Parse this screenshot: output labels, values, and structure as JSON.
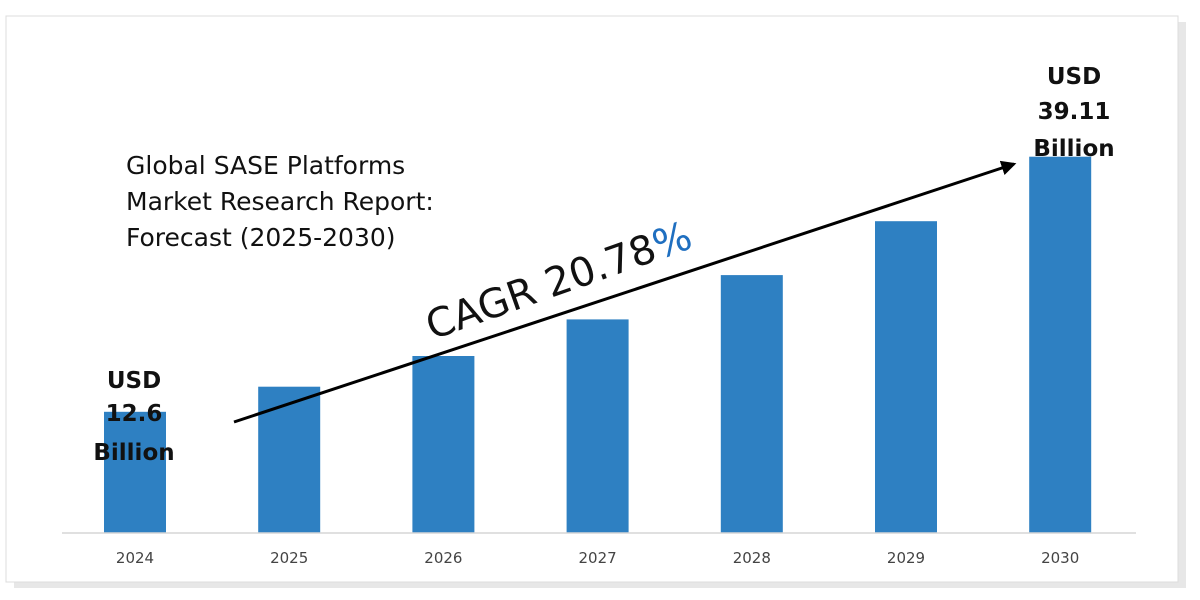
{
  "chart_data": {
    "type": "bar",
    "title_lines": [
      "Global SASE Platforms",
      "Market Research Report:",
      "Forecast (2025-2030)"
    ],
    "categories": [
      "2024",
      "2025",
      "2026",
      "2027",
      "2028",
      "2029",
      "2030"
    ],
    "values": [
      12.6,
      15.2,
      18.4,
      22.2,
      26.8,
      32.4,
      39.11
    ],
    "unit": "USD Billion",
    "ylim": [
      0,
      45
    ],
    "grid": false,
    "bar_color": "#2e80c2",
    "annotations": {
      "start": {
        "line1": "USD",
        "line2": "12.6",
        "line3": "Billion"
      },
      "end": {
        "line1": "USD",
        "line2": "39.11",
        "line3": "Billion"
      },
      "cagr": {
        "text": "CAGR 20.78",
        "symbol": "%",
        "symbol_color": "#1f6fc0"
      }
    }
  }
}
